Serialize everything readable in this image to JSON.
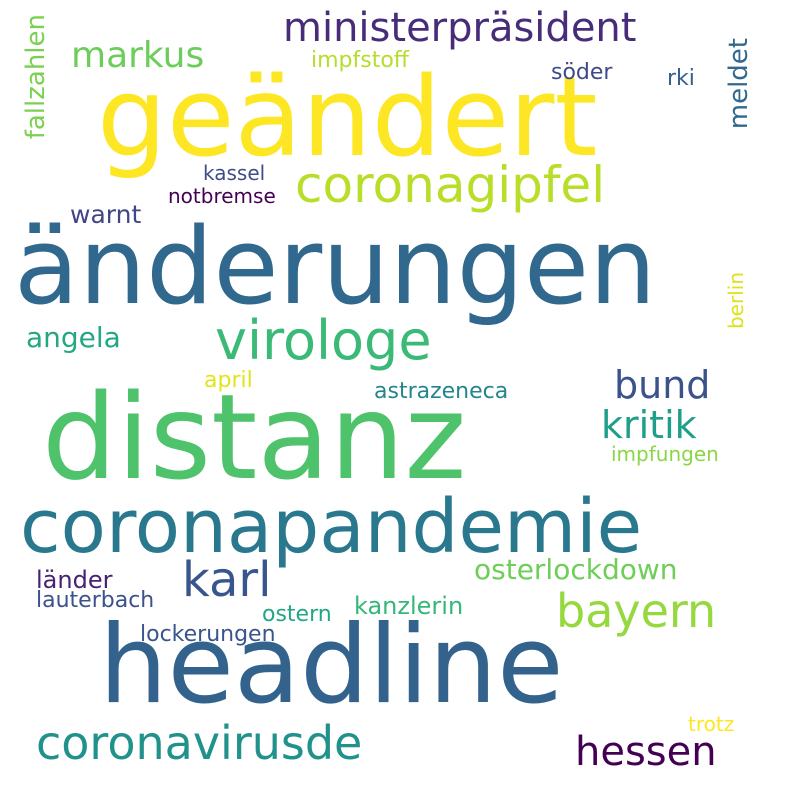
{
  "words": [
    {
      "text": "geändert",
      "color": "#fde725"
    },
    {
      "text": "änderungen",
      "color": "#31688e"
    },
    {
      "text": "distanz",
      "color": "#4ec36b"
    },
    {
      "text": "coronapandemie",
      "color": "#2a788e"
    },
    {
      "text": "headline",
      "color": "#33638d"
    },
    {
      "text": "ministerpräsident",
      "color": "#472c7a"
    },
    {
      "text": "coronagipfel",
      "color": "#b8de29"
    },
    {
      "text": "virologe",
      "color": "#3aba76"
    },
    {
      "text": "markus",
      "color": "#6ccd5a"
    },
    {
      "text": "coronavirusde",
      "color": "#21918c"
    },
    {
      "text": "karl",
      "color": "#39568c"
    },
    {
      "text": "bayern",
      "color": "#95d840"
    },
    {
      "text": "hessen",
      "color": "#440154"
    },
    {
      "text": "bund",
      "color": "#3b528b"
    },
    {
      "text": "kritik",
      "color": "#1f9e89"
    },
    {
      "text": "warnt",
      "color": "#414487"
    },
    {
      "text": "angela",
      "color": "#23a883"
    },
    {
      "text": "osterlockdown",
      "color": "#6ece58"
    },
    {
      "text": "fallzahlen",
      "color": "#7ad151"
    },
    {
      "text": "meldet",
      "color": "#31688e"
    },
    {
      "text": "impfstoff",
      "color": "#b5de2b"
    },
    {
      "text": "söder",
      "color": "#3e4a89"
    },
    {
      "text": "rki",
      "color": "#355f8d"
    },
    {
      "text": "kassel",
      "color": "#3e4c8a"
    },
    {
      "text": "notbremse",
      "color": "#440154"
    },
    {
      "text": "berlin",
      "color": "#dde318"
    },
    {
      "text": "april",
      "color": "#e2e418"
    },
    {
      "text": "astrazeneca",
      "color": "#25858e"
    },
    {
      "text": "impfungen",
      "color": "#8bd646"
    },
    {
      "text": "länder",
      "color": "#482173"
    },
    {
      "text": "lauterbach",
      "color": "#3b528b"
    },
    {
      "text": "ostern",
      "color": "#22a785"
    },
    {
      "text": "kanzlerin",
      "color": "#35b779"
    },
    {
      "text": "lockerungen",
      "color": "#39568c"
    },
    {
      "text": "trotz",
      "color": "#fde725"
    }
  ]
}
